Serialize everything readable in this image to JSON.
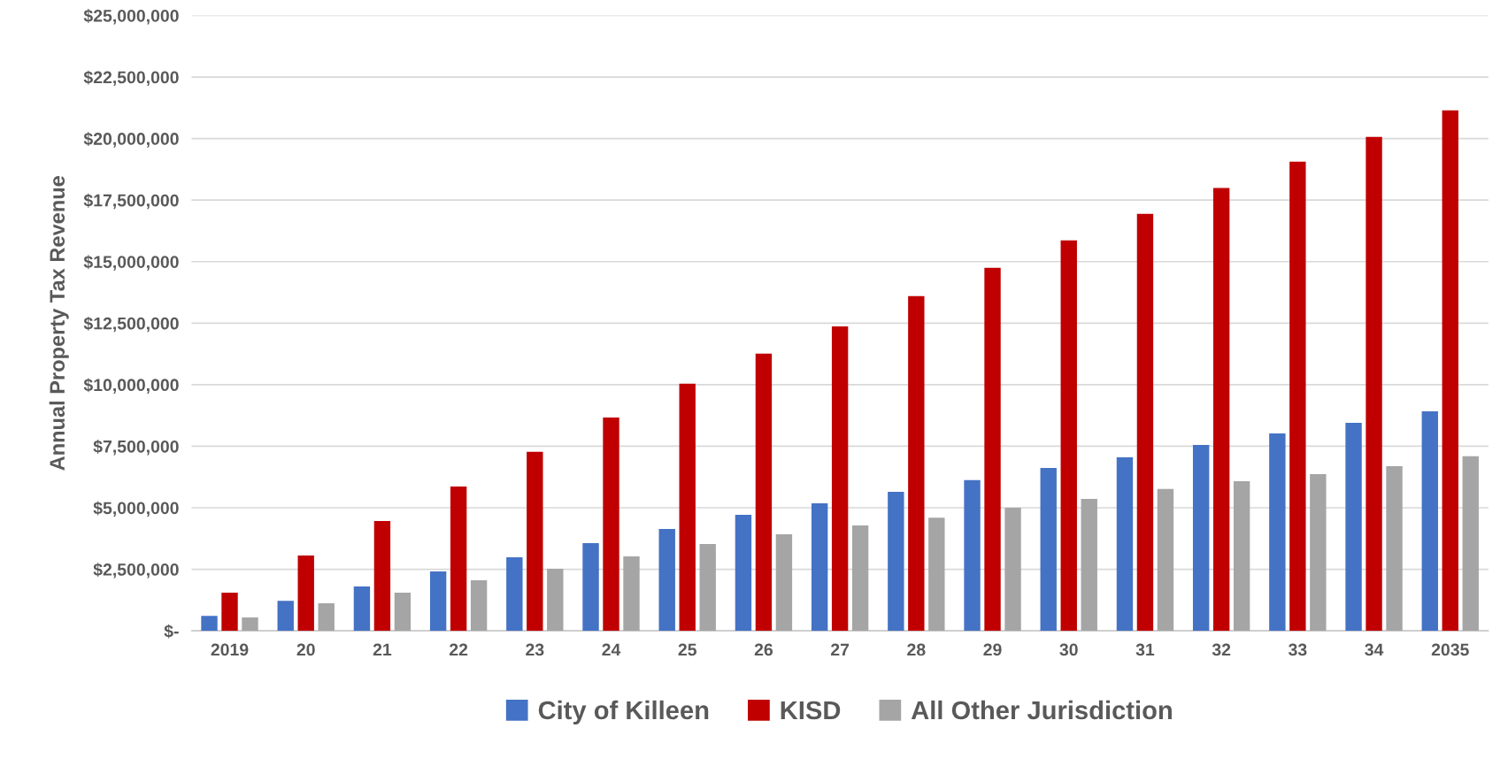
{
  "chart_data": {
    "type": "bar",
    "ylabel": "Annual Property Tax Revenue",
    "categories": [
      "2019",
      "20",
      "21",
      "22",
      "23",
      "24",
      "25",
      "26",
      "27",
      "28",
      "29",
      "30",
      "31",
      "32",
      "33",
      "34",
      "2035"
    ],
    "series": [
      {
        "name": "City of Killeen",
        "color": "#4472c4",
        "values": [
          610000,
          1220000,
          1800000,
          2410000,
          2990000,
          3560000,
          4140000,
          4710000,
          5180000,
          5650000,
          6120000,
          6620000,
          7050000,
          7550000,
          8020000,
          8450000,
          8920000
        ]
      },
      {
        "name": "KISD",
        "color": "#c00000",
        "values": [
          1550000,
          3060000,
          4460000,
          5860000,
          7270000,
          8670000,
          10040000,
          11260000,
          12370000,
          13600000,
          14750000,
          15860000,
          16940000,
          17990000,
          19060000,
          20070000,
          21150000
        ]
      },
      {
        "name": "All Other Jurisdiction",
        "color": "#a5a5a5",
        "values": [
          540000,
          1120000,
          1550000,
          2050000,
          2520000,
          3020000,
          3530000,
          3920000,
          4280000,
          4600000,
          5000000,
          5360000,
          5760000,
          6080000,
          6370000,
          6690000,
          7090000
        ]
      }
    ],
    "ylim": [
      0,
      25000000
    ],
    "yticks": [
      {
        "value": 0,
        "label": "$-"
      },
      {
        "value": 2500000,
        "label": "$2,500,000"
      },
      {
        "value": 5000000,
        "label": "$5,000,000"
      },
      {
        "value": 7500000,
        "label": "$7,500,000"
      },
      {
        "value": 10000000,
        "label": "$10,000,000"
      },
      {
        "value": 12500000,
        "label": "$12,500,000"
      },
      {
        "value": 15000000,
        "label": "$15,000,000"
      },
      {
        "value": 17500000,
        "label": "$17,500,000"
      },
      {
        "value": 20000000,
        "label": "$20,000,000"
      },
      {
        "value": 22500000,
        "label": "$22,500,000"
      },
      {
        "value": 25000000,
        "label": "$25,000,000"
      }
    ],
    "grid": "y",
    "legend": "bottom"
  }
}
